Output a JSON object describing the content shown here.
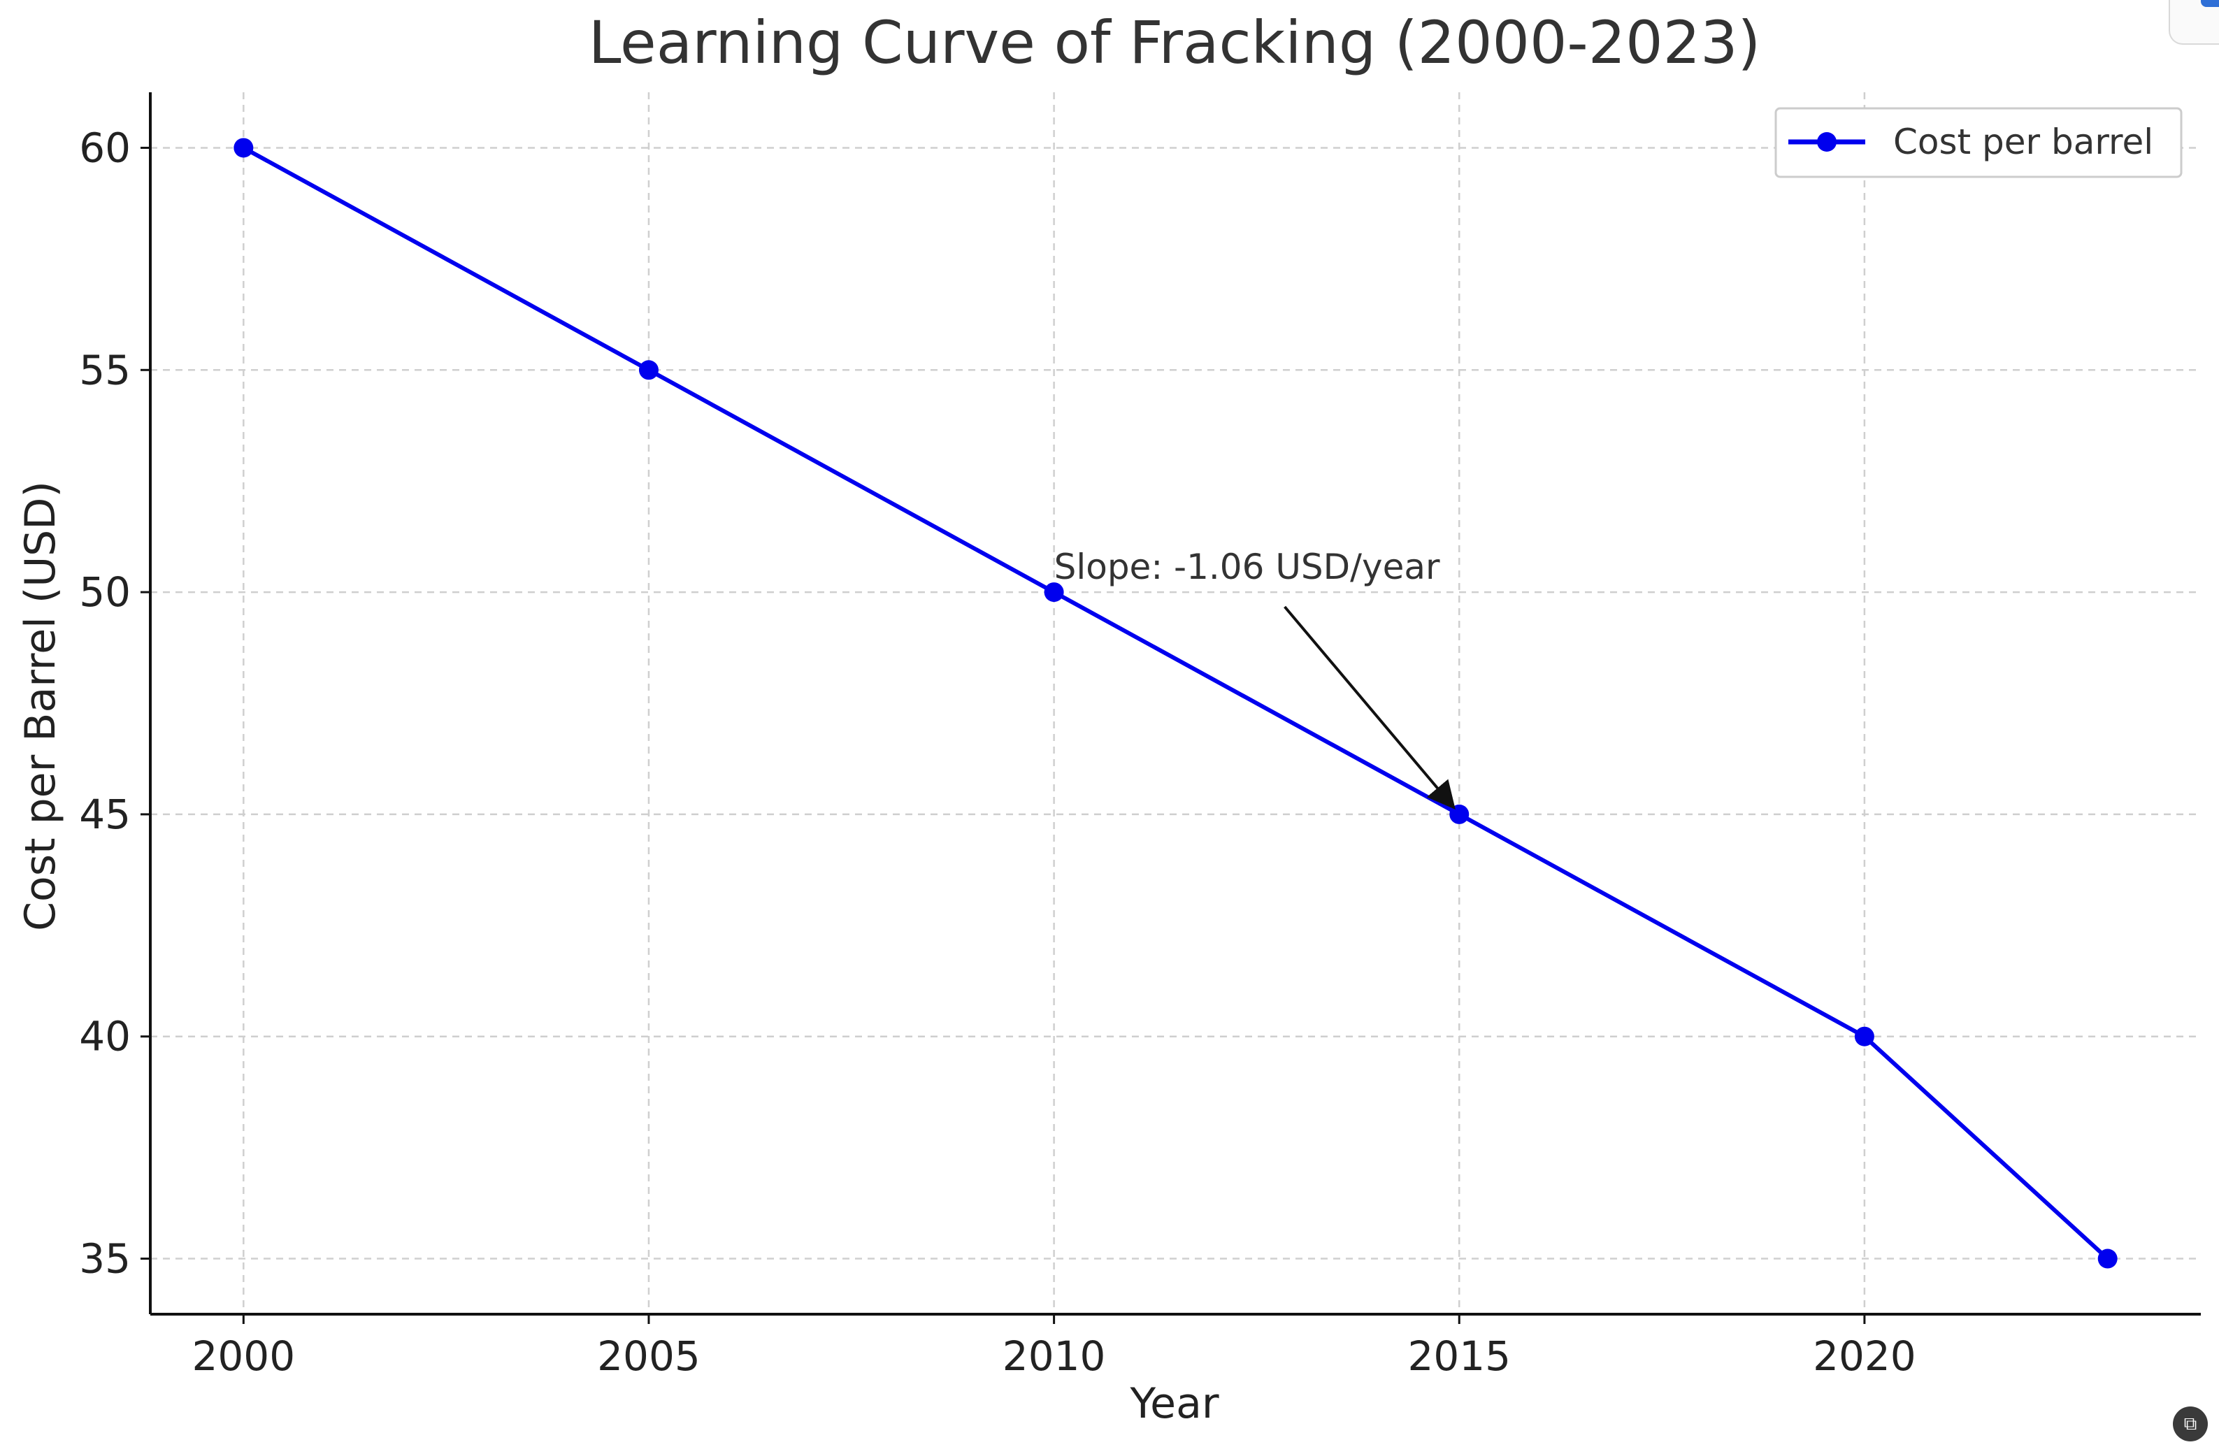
{
  "chart_data": {
    "type": "line",
    "title": "Learning Curve of Fracking (2000-2023)",
    "xlabel": "Year",
    "ylabel": "Cost per Barrel (USD)",
    "x_ticks": [
      2000,
      2005,
      2010,
      2015,
      2020
    ],
    "y_ticks": [
      35,
      40,
      45,
      50,
      55,
      60
    ],
    "xlim": [
      1998.85,
      2024.15
    ],
    "ylim": [
      33.75,
      61.25
    ],
    "grid": true,
    "legend_position": "top-right",
    "series": [
      {
        "name": "Cost per barrel",
        "color": "#0000ee",
        "marker": "circle",
        "x": [
          2000,
          2005,
          2010,
          2015,
          2020,
          2023
        ],
        "y": [
          60,
          55,
          50,
          45,
          40,
          35
        ]
      }
    ],
    "annotation": {
      "text": "Slope: -1.06 USD/year",
      "target_x": 2015,
      "target_y": 45,
      "text_x": 2010,
      "text_y": 50.3
    }
  },
  "icons": {
    "top_right": "app-badge-icon",
    "bottom_right": "screenshot-tool-icon"
  }
}
